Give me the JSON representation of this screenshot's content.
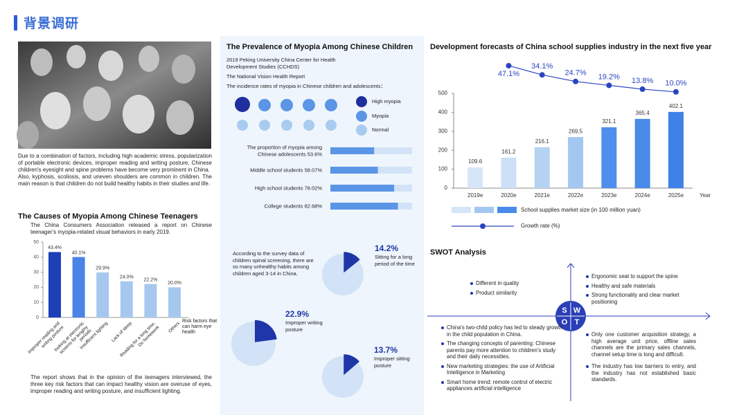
{
  "header": {
    "title": "背景调研"
  },
  "intro": {
    "paragraphs": [
      "Due to a combination of factors, including high academic stress, popularization of portable electronic devices, improper reading and writing posture, Chinese children's eyesight and spine problems have become very prominent in China.",
      "Also, kyphosis, scoliosis, and uneven shoulders are common in children. The main reason is that children do not build healthy habits in their studies and life."
    ]
  },
  "prevalence": {
    "title": "The Prevalence of Myopia Among Chinese Children",
    "source": [
      "2019 Peking University China Center for Health Development Studies (CCHDS)",
      "The National Vision Health Report",
      "The incidence rates of myopia in Chinese children and adolescents："
    ],
    "dot_legend": [
      "High myopia",
      "Myopia",
      "Normal"
    ]
  },
  "chart_data": [
    {
      "type": "bar",
      "title": "The Causes of Myopia Among Chinese Teenagers",
      "subtitle": "The China Consumers Association released a report on Chinese teenager's myopia-related visual behaviors in early 2019.",
      "categories": [
        "Improper reading and writing posture",
        "looking at electronic screens for lengthy periods",
        "Insufficient lighting",
        "Lack of sleep",
        "Reading for a long time, Do homework",
        "Others"
      ],
      "values": [
        43.4,
        40.1,
        29.9,
        24.0,
        22.2,
        20.0
      ],
      "value_labels": [
        "43.4%",
        "40.1%",
        "29.9%",
        "24.0%",
        "22.2%",
        "20.0%"
      ],
      "colors": [
        "#1d3fb8",
        "#4a84e6",
        "#a6c8ee",
        "#a6c8ee",
        "#a6c8ee",
        "#a6c8ee"
      ],
      "ylim": [
        0,
        50
      ],
      "yticks": [
        0,
        10,
        20,
        30,
        40,
        50
      ],
      "annotation": "Risk factors that can harm eye health",
      "note": "The report shows that in the opinion of the teenagers interviewed, the three key risk factors that can impact healthy vision are overuse of eyes, improper reading and writing posture, and insufficient lighting."
    },
    {
      "type": "hbar",
      "categories": [
        "The proportion of myopia among Chinese adolescents",
        "Middle school students",
        "High school students",
        "College students"
      ],
      "values": [
        53.6,
        58.07,
        78.02,
        82.68
      ],
      "value_labels": [
        "53.6%",
        "58.07%",
        "78.02%",
        "82.68%"
      ],
      "xlim": [
        0,
        100
      ],
      "color": "#5b95e6",
      "track_color": "#d3e3f7"
    },
    {
      "type": "pie",
      "note": "According to the survey data of children spinal screening, there are so many unhealthy habits among children aged 3-14 in China.",
      "categories": [
        "Sitting for a long period of the time",
        "Improper writing posture",
        "Improper sitting posture"
      ],
      "values": [
        14.2,
        22.9,
        13.7
      ],
      "value_labels": [
        "14.2%",
        "22.9%",
        "13.7%"
      ],
      "color": "#1f36a8",
      "base_color": "#d2e3f7"
    },
    {
      "type": "bar_line",
      "title": "Development forecasts of China school supplies industry in the next five year",
      "categories": [
        "2019e",
        "2020e",
        "2021e",
        "2022e",
        "2023e",
        "2024e",
        "2025e"
      ],
      "series": [
        {
          "name": "School supplies market size (in 100 million yuan)",
          "type": "bar",
          "colors": [
            "#d6e6f8",
            "#cde0f7",
            "#b5d2f3",
            "#a3c7f1",
            "#4f8eea",
            "#4a8ae9",
            "#3e82e8"
          ],
          "values": [
            109.6,
            161.2,
            216.1,
            269.5,
            321.1,
            365.4,
            402.1
          ]
        },
        {
          "name": "Growth rate (%)",
          "type": "line",
          "axis": "y2",
          "color": "#2a44c0",
          "values": [
            null,
            47.1,
            34.1,
            24.7,
            19.2,
            13.8,
            10.0
          ],
          "value_labels": [
            null,
            "47.1%",
            "34.1%",
            "24.7%",
            "19.2%",
            "13.8%",
            "10.0%"
          ]
        }
      ],
      "ylim": [
        0,
        500
      ],
      "yticks": [
        0,
        100,
        200,
        300,
        400,
        500
      ],
      "y2lim": [
        0,
        50
      ],
      "x_label": "Year"
    }
  ],
  "swot": {
    "title": "SWOT Analysis",
    "letters": [
      "S",
      "W",
      "O",
      "T"
    ],
    "top_left": [
      "Different in quality",
      "Product similarity"
    ],
    "top_right": [
      "Ergonomic seat to support the spine",
      "Healthy and safe materials",
      "Strong functionality and clear market positioning"
    ],
    "bottom_left": [
      "China's two-child policy has led to steady growth in the child population in China.",
      "The changing concepts of parenting: Chinese parents pay more attention to children's study and their daily necessities.",
      "New marketing strategies: the use of Artificial Intelligence in Marketing",
      "Smart home trend: remote control of electric appliances artificial intelligence"
    ],
    "bottom_right": [
      "Only one customer acquisition strategy, a high average unit price, offline sales channels are the primary sales channels, channel setup time is long and difficult.",
      "The industry has low barriers to entry, and the industry has not established basic standards."
    ]
  }
}
